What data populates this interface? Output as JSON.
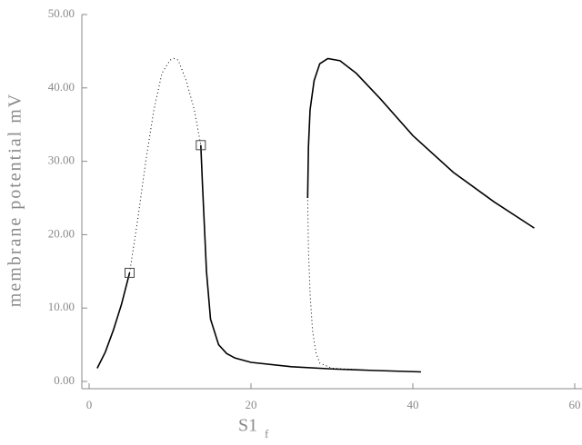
{
  "chart_data": {
    "type": "line",
    "ylabel": "membrane potential mV",
    "xlabel": "S1",
    "xlabel_subscript": "f",
    "xlim": [
      0,
      60
    ],
    "xticks": [
      0,
      20,
      40,
      60
    ],
    "ylim": [
      0,
      50
    ],
    "yticks": [
      {
        "value": 0,
        "label": "0.00"
      },
      {
        "value": 10,
        "label": "10.00"
      },
      {
        "value": 20,
        "label": "20.00"
      },
      {
        "value": 30,
        "label": "30.00"
      },
      {
        "value": 40,
        "label": "40.00"
      },
      {
        "value": 50,
        "label": "50.00"
      }
    ],
    "series": [
      {
        "color": "#000000",
        "style": "solid",
        "x": [
          1,
          2,
          3,
          4,
          5
        ],
        "values": [
          1.8,
          4,
          7,
          10.5,
          14.8
        ]
      },
      {
        "color": "#000000",
        "style": "dotted",
        "x": [
          5,
          6,
          7,
          8,
          9,
          10,
          10.5,
          11,
          12,
          13,
          13.8
        ],
        "values": [
          14.8,
          22,
          30,
          37,
          42,
          43.8,
          44,
          43.8,
          41,
          37,
          32.2
        ]
      },
      {
        "color": "#000000",
        "style": "solid",
        "x": [
          13.8,
          14,
          14.5,
          15,
          16,
          17,
          18,
          20,
          25,
          30,
          35,
          41
        ],
        "values": [
          32.2,
          27,
          15,
          8.5,
          5,
          3.8,
          3.2,
          2.6,
          2.0,
          1.7,
          1.5,
          1.3
        ]
      },
      {
        "color": "#000000",
        "style": "dotted",
        "x": [
          41,
          35,
          30,
          28.5,
          28,
          27.6,
          27.3,
          27.1,
          27
        ],
        "values": [
          1.3,
          1.5,
          1.8,
          2.5,
          4,
          7,
          12,
          18,
          25
        ]
      },
      {
        "color": "#000000",
        "style": "solid",
        "x": [
          27,
          27.1,
          27.3,
          27.8,
          28.5,
          29.5,
          31,
          33,
          36,
          40,
          45,
          50,
          55
        ],
        "values": [
          25,
          32,
          37,
          41,
          43.3,
          44,
          43.7,
          42,
          38.5,
          33.5,
          28.5,
          24.5,
          20.9
        ]
      }
    ],
    "special_points": {
      "x": [
        5,
        13.8
      ],
      "values": [
        14.8,
        32.2
      ]
    }
  }
}
